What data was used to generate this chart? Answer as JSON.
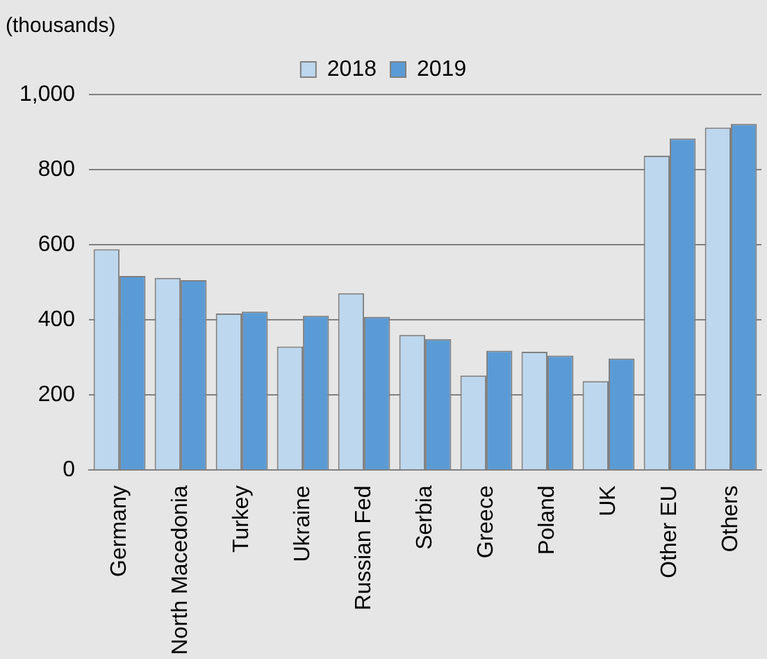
{
  "chart_data": {
    "type": "bar",
    "ylabel": "(thousands)",
    "categories": [
      "Germany",
      "North Macedonia",
      "Turkey",
      "Ukraine",
      "Russian Fed",
      "Serbia",
      "Greece",
      "Poland",
      "UK",
      "Other EU",
      "Others"
    ],
    "series": [
      {
        "name": "2018",
        "color": "#bdd7ee",
        "values": [
          588,
          512,
          417,
          329,
          471,
          360,
          252,
          315,
          237,
          837,
          912
        ]
      },
      {
        "name": "2019",
        "color": "#5b9bd5",
        "values": [
          517,
          506,
          422,
          411,
          408,
          349,
          318,
          305,
          297,
          883,
          922
        ]
      }
    ],
    "ylim": [
      0,
      1000
    ],
    "yticks": [
      0,
      200,
      400,
      600,
      800,
      {
        "value": 1000,
        "label": "1,000"
      }
    ],
    "grid": "y",
    "legend": "top"
  }
}
